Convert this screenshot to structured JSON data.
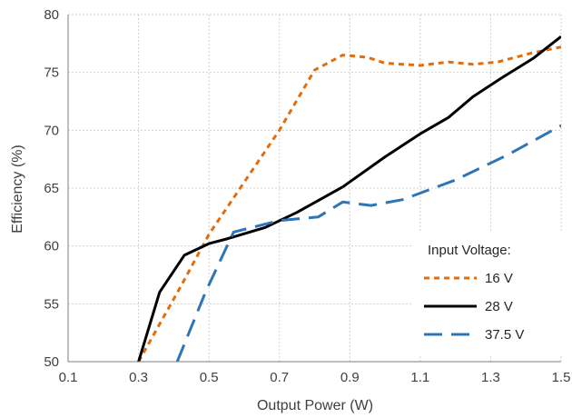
{
  "colors": {
    "background": "#ffffff",
    "grid": "#d0d0d0",
    "axis": "#7f7f7f",
    "text": "#404040"
  },
  "chart_data": {
    "type": "line",
    "title": "",
    "xlabel": "Output Power (W)",
    "ylabel": "Efficiency (%)",
    "xlim": [
      0.1,
      1.5
    ],
    "ylim": [
      50,
      80
    ],
    "xticks": [
      "0.1",
      "0.3",
      "0.5",
      "0.7",
      "0.9",
      "1.1",
      "1.3",
      "1.5"
    ],
    "yticks": [
      "50",
      "55",
      "60",
      "65",
      "70",
      "75",
      "80"
    ],
    "grid": true,
    "legend": {
      "title": "Input Voltage:",
      "placement": "bottom-right"
    },
    "series": [
      {
        "name": "16 V",
        "color": "#e46c0a",
        "dash": "short-dash",
        "points": [
          [
            0.3,
            50
          ],
          [
            0.42,
            56.5
          ],
          [
            0.5,
            61.0
          ],
          [
            0.6,
            65.5
          ],
          [
            0.7,
            70.0
          ],
          [
            0.8,
            75.2
          ],
          [
            0.88,
            76.5
          ],
          [
            0.95,
            76.3
          ],
          [
            1.0,
            75.8
          ],
          [
            1.1,
            75.6
          ],
          [
            1.18,
            75.9
          ],
          [
            1.25,
            75.7
          ],
          [
            1.32,
            75.9
          ],
          [
            1.42,
            76.7
          ],
          [
            1.5,
            77.2
          ]
        ]
      },
      {
        "name": "28 V",
        "color": "#000000",
        "dash": "solid",
        "points": [
          [
            0.3,
            50
          ],
          [
            0.36,
            56.0
          ],
          [
            0.43,
            59.2
          ],
          [
            0.5,
            60.2
          ],
          [
            0.55,
            60.6
          ],
          [
            0.66,
            61.6
          ],
          [
            0.75,
            62.9
          ],
          [
            0.88,
            65.1
          ],
          [
            1.0,
            67.7
          ],
          [
            1.1,
            69.7
          ],
          [
            1.18,
            71.1
          ],
          [
            1.25,
            72.9
          ],
          [
            1.33,
            74.5
          ],
          [
            1.42,
            76.2
          ],
          [
            1.5,
            78.1
          ]
        ]
      },
      {
        "name": "37.5 V",
        "color": "#2e75b6",
        "dash": "long-dash",
        "points": [
          [
            0.41,
            50
          ],
          [
            0.49,
            56.0
          ],
          [
            0.57,
            61.2
          ],
          [
            0.7,
            62.2
          ],
          [
            0.81,
            62.5
          ],
          [
            0.88,
            63.8
          ],
          [
            0.96,
            63.5
          ],
          [
            1.05,
            64.0
          ],
          [
            1.2,
            65.7
          ],
          [
            1.35,
            67.9
          ],
          [
            1.5,
            70.4
          ]
        ]
      }
    ]
  }
}
